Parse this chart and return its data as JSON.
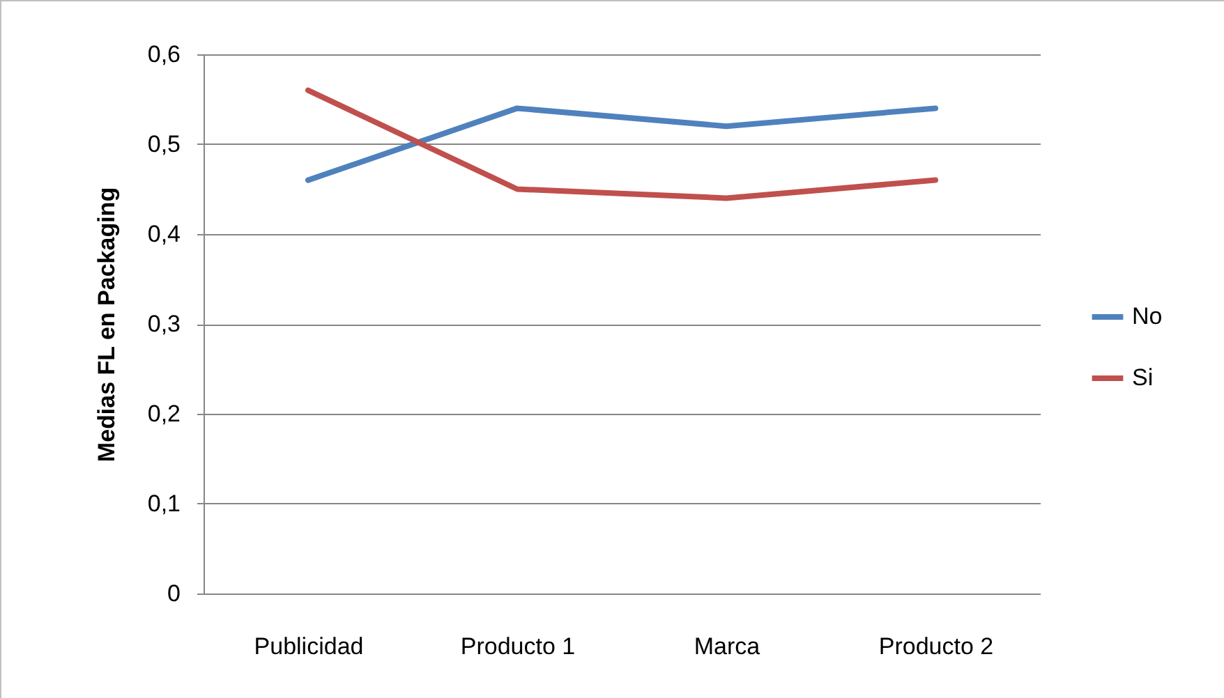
{
  "chart_data": {
    "type": "line",
    "ylabel": "Medias FL en Packaging",
    "categories": [
      "Publicidad",
      "Producto 1",
      "Marca",
      "Producto 2"
    ],
    "series": [
      {
        "name": "No",
        "color": "#4f81bd",
        "values": [
          0.46,
          0.54,
          0.52,
          0.54
        ]
      },
      {
        "name": "Si",
        "color": "#c0504d",
        "values": [
          0.56,
          0.45,
          0.44,
          0.46
        ]
      }
    ],
    "ylim": [
      0,
      0.6
    ],
    "yticks": [
      {
        "value": 0,
        "label": "0"
      },
      {
        "value": 0.1,
        "label": "0,1"
      },
      {
        "value": 0.2,
        "label": "0,2"
      },
      {
        "value": 0.3,
        "label": "0,3"
      },
      {
        "value": 0.4,
        "label": "0,4"
      },
      {
        "value": 0.5,
        "label": "0,5"
      },
      {
        "value": 0.6,
        "label": "0,6"
      }
    ],
    "grid": "y",
    "legend": "right",
    "marker": "none",
    "line_style": "solid"
  }
}
